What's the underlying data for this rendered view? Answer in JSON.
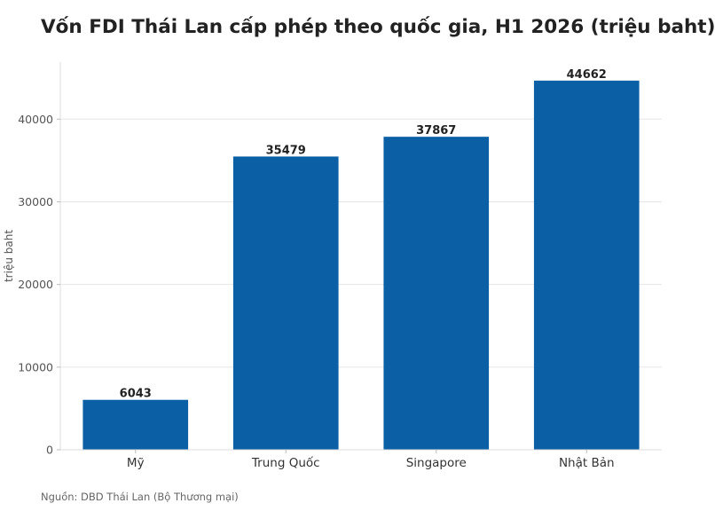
{
  "chart_data": {
    "type": "bar",
    "title": "Vốn FDI Thái Lan cấp phép theo quốc gia, H1 2026 (triệu baht)",
    "ylabel": "triệu baht",
    "xlabel": "",
    "categories": [
      "Mỹ",
      "Trung Quốc",
      "Singapore",
      "Nhật Bản"
    ],
    "values": [
      6043,
      35479,
      37867,
      44662
    ],
    "data_labels": [
      "6043",
      "35479",
      "37867",
      "44662"
    ],
    "yticks": [
      0,
      10000,
      20000,
      30000,
      40000
    ],
    "ytick_labels": [
      "0",
      "10000",
      "20000",
      "30000",
      "40000"
    ],
    "ylim": [
      0,
      46900
    ],
    "grid": true,
    "legend": "none",
    "bar_color": "#0b5fa5"
  },
  "source": "Nguồn: DBD Thái Lan (Bộ Thương mại)"
}
